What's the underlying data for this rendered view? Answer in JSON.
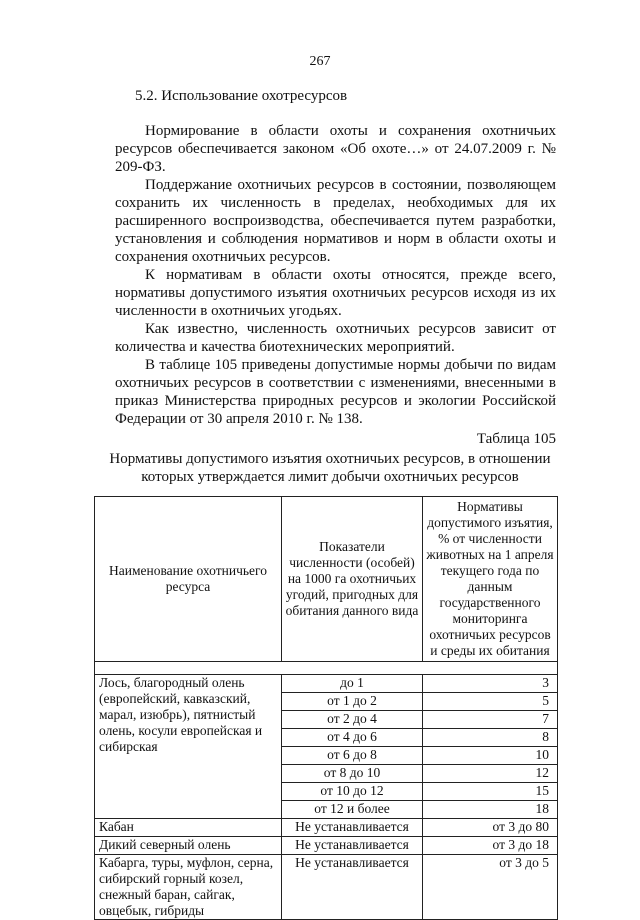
{
  "page_number": "267",
  "section_heading": "5.2. Использование охотресурсов",
  "paragraphs": [
    "Нормирование в области охоты и сохранения охотничьих ресурсов обеспечивается законом «Об охоте…» от 24.07.2009 г. № 209-ФЗ.",
    "Поддержание охотничьих ресурсов в состоянии, позволяющем сохранить их численность в пределах, необходимых для их расширенного воспроизводства, обеспечивается путем разработки, установления и соблюдения нормативов и норм в области охоты и сохранения охотничьих ресурсов.",
    "К нормативам в области охоты относятся, прежде всего, нормативы допустимого изъятия охотничьих ресурсов исходя из их численности в охотничьих угодьях.",
    "Как известно, численность охотничьих ресурсов зависит от количества и качества биотехнических мероприятий.",
    "В таблице 105 приведены допустимые нормы добычи по видам охотничьих ресурсов в соответствии с изменениями, внесенными в приказ Министерства природных ресурсов и экологии Российской Федерации от 30 апреля 2010 г. № 138."
  ],
  "table_number": "Таблица 105",
  "table_title": "Нормативы допустимого изъятия охотничьих ресурсов, в отношении которых утверждается лимит добычи охотничьих ресурсов",
  "table": {
    "headers": [
      "Наименование охотничьего ресурса",
      "Показатели численности (особей) на 1000 га охотничьих угодий, пригодных для обитания данного вида",
      "Нормативы допустимого изъятия, % от численности животных на 1 апреля текущего года по данным государственного мониторинга охотничьих ресурсов и среды их обитания"
    ],
    "group1_name": "Лось, благородный олень (европейский, кавказский, марал, изюбрь), пятнистый олень, косули европейская и сибирская",
    "group1_rows": [
      [
        "до 1",
        "3"
      ],
      [
        "от 1 до 2",
        "5"
      ],
      [
        "от 2 до 4",
        "7"
      ],
      [
        "от 4 до 6",
        "8"
      ],
      [
        "от 6 до 8",
        "10"
      ],
      [
        "от 8 до 10",
        "12"
      ],
      [
        "от 10 до 12",
        "15"
      ],
      [
        "от 12 и более",
        "18"
      ]
    ],
    "rows": [
      [
        "Кабан",
        "Не устанавливается",
        "от 3 до 80"
      ],
      [
        "Дикий северный олень",
        "Не устанавливается",
        "от 3 до 18"
      ],
      [
        "Кабарга, туры, муфлон, серна, сибирский горный козел, снежный баран, сайгак, овцебык, гибриды",
        "Не устанавливается",
        "от 3 до 5"
      ]
    ]
  }
}
